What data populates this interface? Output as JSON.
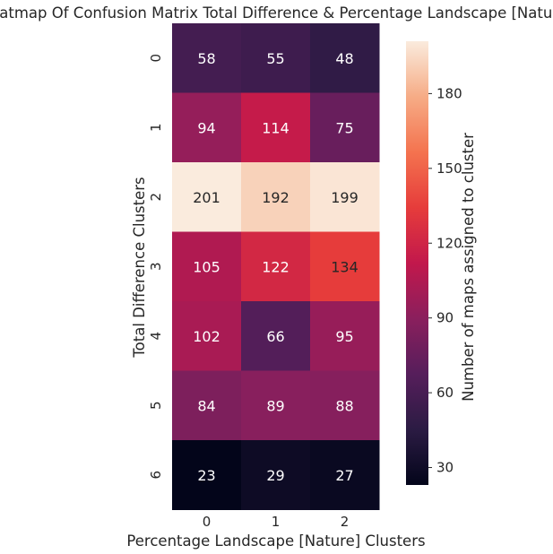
{
  "chart_data": {
    "type": "heatmap",
    "title": "Heatmap Of Confusion Matrix Total Difference & Percentage Landscape [Nature]",
    "xlabel": "Percentage Landscape [Nature] Clusters",
    "ylabel": "Total Difference Clusters",
    "x_categories": [
      "0",
      "1",
      "2"
    ],
    "y_categories": [
      "0",
      "1",
      "2",
      "3",
      "4",
      "5",
      "6"
    ],
    "values": [
      [
        58,
        55,
        48
      ],
      [
        94,
        114,
        75
      ],
      [
        201,
        192,
        199
      ],
      [
        105,
        122,
        134
      ],
      [
        102,
        66,
        95
      ],
      [
        84,
        89,
        88
      ],
      [
        23,
        29,
        27
      ]
    ],
    "colorbar": {
      "label": "Number of maps assigned to cluster",
      "range": [
        23,
        201
      ],
      "ticks": [
        30,
        60,
        90,
        120,
        150,
        180
      ],
      "colormap": "rocket"
    }
  }
}
